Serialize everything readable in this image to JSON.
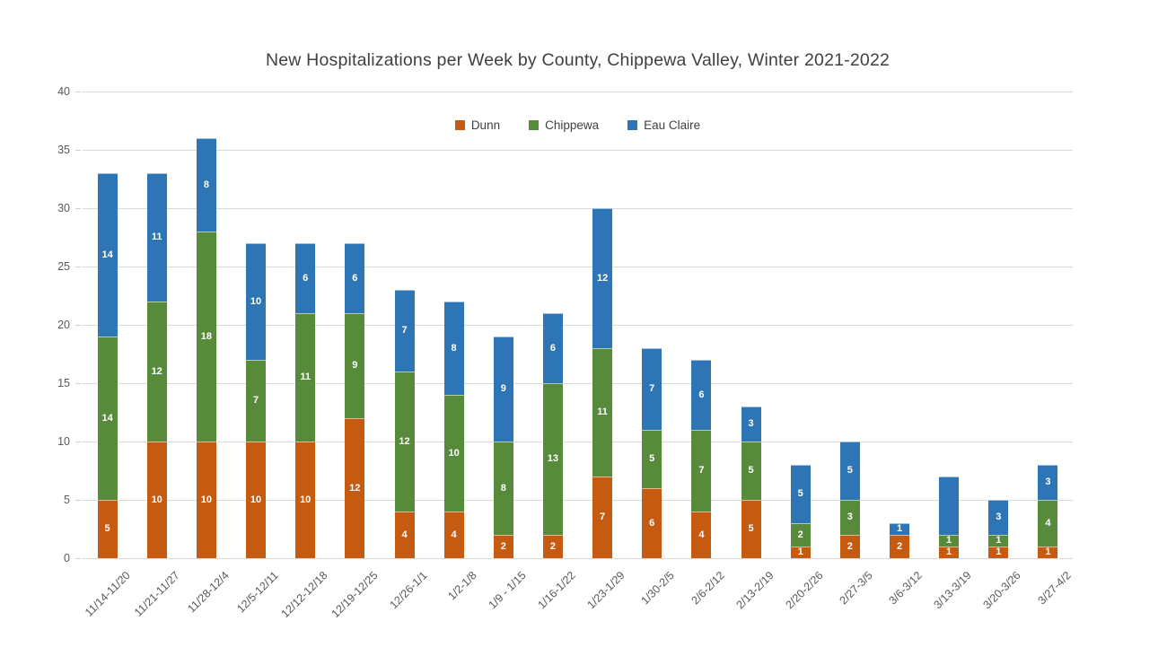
{
  "colors": {
    "dunn": "#C55A11",
    "chippewa": "#578A3A",
    "eau_claire": "#2E75B6",
    "gridline": "#D9D9D9",
    "axis_text": "#595959",
    "title_text": "#404040",
    "data_label_text": "#FFFFFF"
  },
  "chart_data": {
    "type": "bar",
    "stacked": true,
    "title": "New Hospitalizations per Week by County, Chippewa Valley, Winter 2021-2022",
    "xlabel": "",
    "ylabel": "",
    "ylim": [
      0,
      40
    ],
    "yticks": [
      0,
      5,
      10,
      15,
      20,
      25,
      30,
      35,
      40
    ],
    "grid": true,
    "legend_position": "top",
    "data_labels": true,
    "categories": [
      "11/14-11/20",
      "11/21-11/27",
      "11/28-12/4",
      "12/5-12/11",
      "12/12-12/18",
      "12/19-12/25",
      "12/26-1/1",
      "1/2-1/8",
      "1/9 - 1/15",
      "1/16-1/22",
      "1/23-1/29",
      "1/30-2/5",
      "2/6-2/12",
      "2/13-2/19",
      "2/20-2/26",
      "2/27-3/5",
      "3/6-3/12",
      "3/13-3/19",
      "3/20-3/26",
      "3/27-4/2"
    ],
    "series": [
      {
        "name": "Dunn",
        "color": "#C55A11",
        "values": [
          5,
          10,
          10,
          10,
          10,
          12,
          4,
          4,
          2,
          2,
          7,
          6,
          4,
          5,
          1,
          2,
          2,
          1,
          1,
          1
        ]
      },
      {
        "name": "Chippewa",
        "color": "#578A3A",
        "values": [
          14,
          12,
          18,
          7,
          11,
          9,
          12,
          10,
          8,
          13,
          11,
          5,
          7,
          5,
          2,
          3,
          0,
          1,
          1,
          4
        ]
      },
      {
        "name": "Eau Claire",
        "color": "#2E75B6",
        "values": [
          14,
          11,
          8,
          10,
          6,
          6,
          7,
          8,
          9,
          6,
          12,
          7,
          6,
          3,
          5,
          5,
          1,
          5,
          3,
          3
        ]
      }
    ],
    "unlabeled_segments": [
      {
        "category": "3/13-3/19",
        "series": "Eau Claire"
      }
    ]
  }
}
